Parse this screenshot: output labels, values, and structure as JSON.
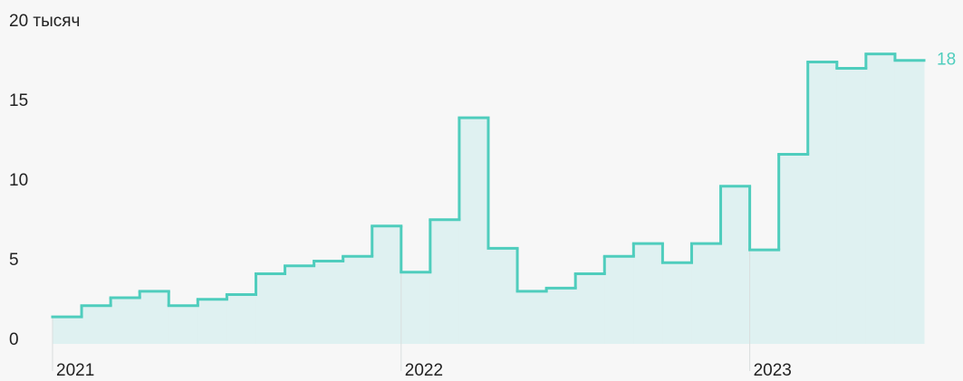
{
  "chart_data": {
    "type": "step",
    "categories": [
      "2021",
      null,
      null,
      null,
      null,
      null,
      null,
      null,
      null,
      null,
      null,
      null,
      "2022",
      null,
      null,
      null,
      null,
      null,
      null,
      null,
      null,
      null,
      null,
      null,
      "2023",
      null,
      null,
      null,
      null,
      null
    ],
    "values": [
      1.7,
      2.4,
      2.9,
      3.3,
      2.4,
      2.8,
      3.1,
      4.4,
      4.9,
      5.2,
      5.5,
      7.4,
      4.5,
      7.8,
      14.2,
      6.0,
      3.3,
      3.5,
      4.4,
      5.5,
      6.3,
      5.1,
      6.3,
      9.9,
      5.9,
      11.9,
      17.7,
      17.3,
      18.2,
      17.8
    ],
    "value_labels": [
      null,
      null,
      null,
      null,
      null,
      null,
      null,
      null,
      null,
      null,
      null,
      null,
      null,
      null,
      null,
      null,
      null,
      null,
      null,
      null,
      null,
      null,
      null,
      null,
      null,
      null,
      null,
      null,
      null,
      "18"
    ],
    "color": "#4fcdbd",
    "ylim": [
      0,
      20
    ],
    "yticks": [
      0,
      5,
      10,
      15,
      {
        "value": 20,
        "label": "20 тысяч"
      }
    ]
  }
}
